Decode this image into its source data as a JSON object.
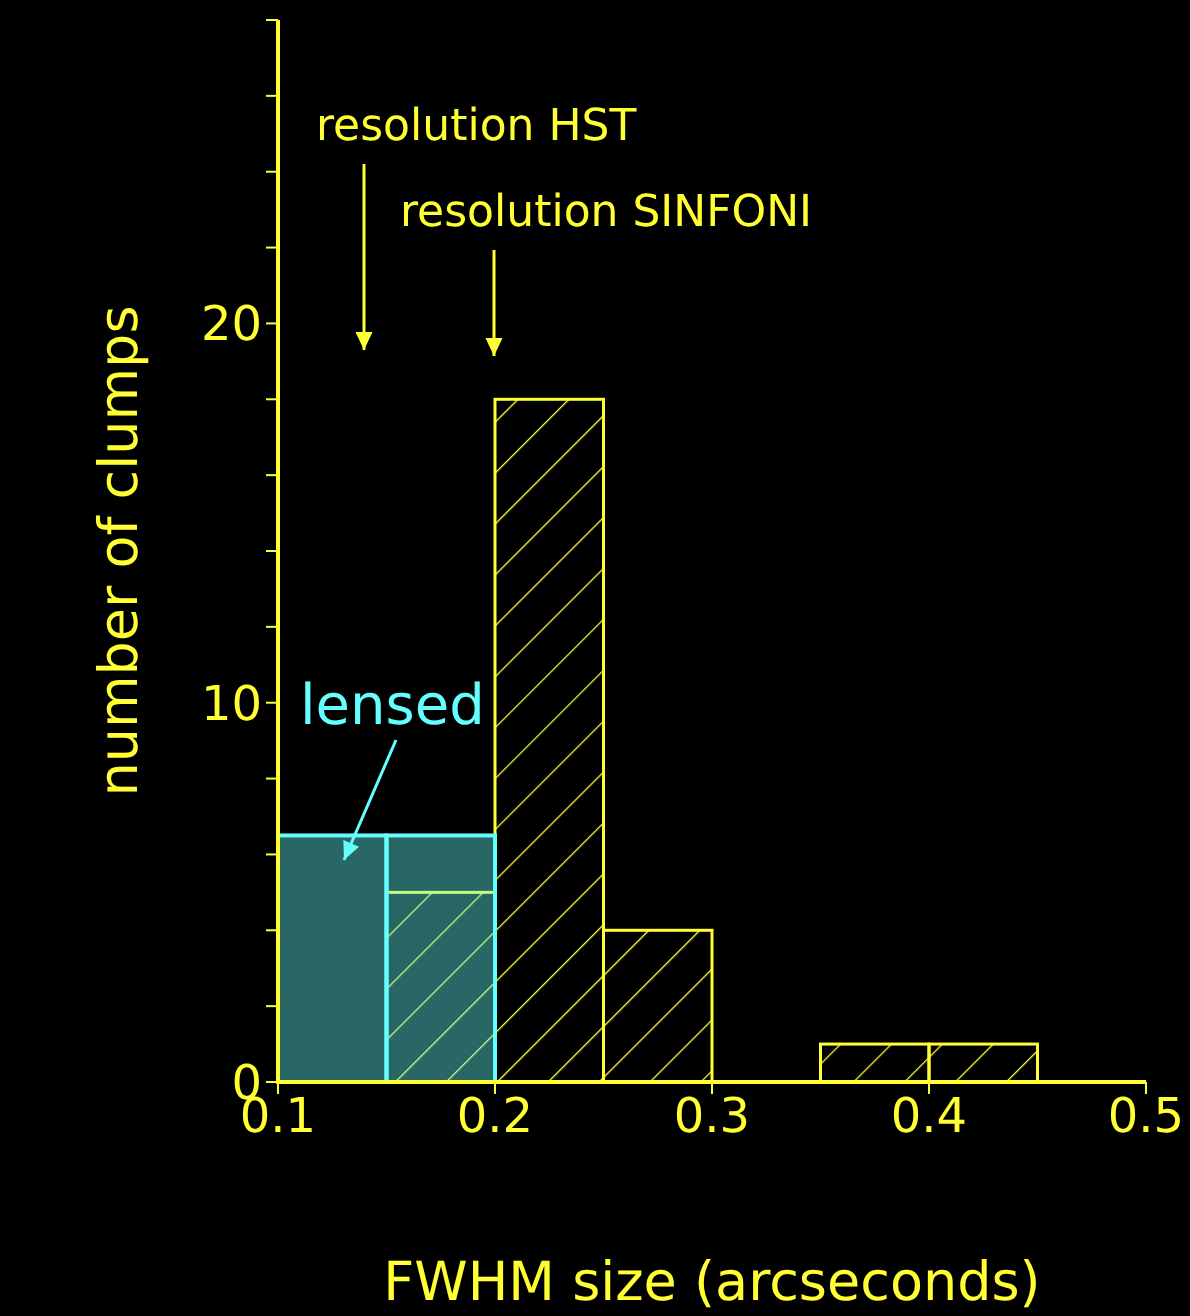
{
  "chart_data": {
    "type": "histogram",
    "xlabel": "FWHM size (arcseconds)",
    "ylabel": "number of clumps",
    "bins": [
      0.1,
      0.15,
      0.2,
      0.25,
      0.3,
      0.35,
      0.4,
      0.45,
      0.5
    ],
    "series": [
      {
        "color": "#ffff33",
        "values": [
          0,
          5,
          18,
          4,
          0,
          1,
          1,
          0
        ]
      },
      {
        "name": "lensed",
        "color": "#66ffff",
        "values": [
          6.5,
          6.5,
          null,
          null,
          null,
          null,
          null,
          null
        ]
      }
    ],
    "xlim": [
      0.1,
      0.5
    ],
    "xticks": [
      0.1,
      0.2,
      0.3,
      0.4,
      0.5
    ],
    "ylim": [
      0,
      28
    ],
    "yticks": [
      0,
      {
        "value": 2,
        "label": null
      },
      {
        "value": 4,
        "label": null
      },
      {
        "value": 6,
        "label": null
      },
      {
        "value": 8,
        "label": null
      },
      10,
      {
        "value": 12,
        "label": null
      },
      {
        "value": 14,
        "label": null
      },
      {
        "value": 16,
        "label": null
      },
      {
        "value": 18,
        "label": null
      },
      20,
      {
        "value": 22,
        "label": null
      },
      {
        "value": 24,
        "label": null
      },
      {
        "value": 26,
        "label": null
      },
      {
        "value": 28,
        "label": null
      }
    ],
    "annotations": [
      "resolution HST",
      "resolution SINFONI"
    ]
  }
}
